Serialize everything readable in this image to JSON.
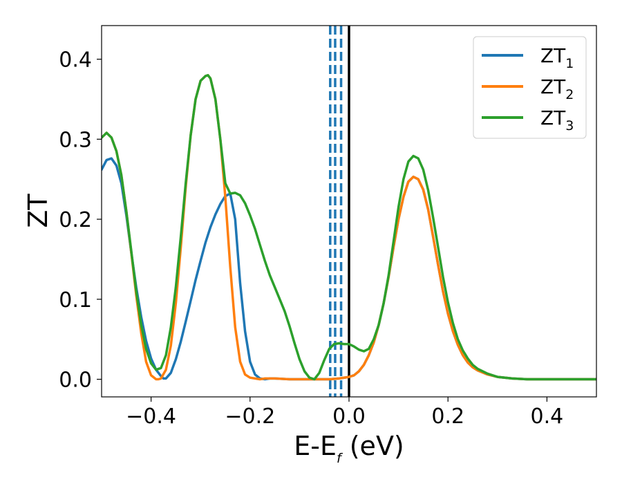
{
  "chart_data": {
    "type": "line",
    "xlabel": {
      "main": "E-E",
      "sub": "f",
      "suffix": " (eV)"
    },
    "ylabel": "ZT",
    "xlim": [
      -0.5,
      0.5
    ],
    "ylim": [
      -0.022,
      0.442
    ],
    "xticks": [
      -0.4,
      -0.2,
      0.0,
      0.2,
      0.4
    ],
    "xtick_labels": [
      "−0.4",
      "−0.2",
      "0.0",
      "0.2",
      "0.4"
    ],
    "yticks": [
      0.0,
      0.1,
      0.2,
      0.3,
      0.4
    ],
    "ytick_labels": [
      "0.0",
      "0.1",
      "0.2",
      "0.3",
      "0.4"
    ],
    "grid": false,
    "legend_position": "top-right",
    "series": [
      {
        "name": "ZT",
        "name_sub": "1",
        "color": "#1f77b4",
        "x": [
          -0.5,
          -0.49,
          -0.48,
          -0.47,
          -0.46,
          -0.45,
          -0.44,
          -0.43,
          -0.42,
          -0.41,
          -0.4,
          -0.39,
          -0.38,
          -0.375,
          -0.37,
          -0.36,
          -0.35,
          -0.34,
          -0.33,
          -0.32,
          -0.31,
          -0.3,
          -0.29,
          -0.28,
          -0.27,
          -0.26,
          -0.25,
          -0.24,
          -0.23,
          -0.22,
          -0.21,
          -0.2,
          -0.19,
          -0.18,
          -0.17,
          -0.16,
          -0.15,
          -0.12,
          -0.1,
          -0.08,
          -0.06,
          -0.04,
          -0.02,
          0.0,
          0.01,
          0.02,
          0.03,
          0.04,
          0.05,
          0.06,
          0.07,
          0.08,
          0.09,
          0.1,
          0.11,
          0.12,
          0.13,
          0.14,
          0.15,
          0.16,
          0.17,
          0.18,
          0.19,
          0.2,
          0.21,
          0.22,
          0.23,
          0.24,
          0.25,
          0.26,
          0.28,
          0.3,
          0.33,
          0.36,
          0.4,
          0.45,
          0.5
        ],
        "y": [
          0.262,
          0.274,
          0.276,
          0.267,
          0.245,
          0.205,
          0.158,
          0.115,
          0.078,
          0.048,
          0.026,
          0.012,
          0.004,
          0.001,
          0.001,
          0.008,
          0.025,
          0.047,
          0.072,
          0.098,
          0.124,
          0.148,
          0.171,
          0.19,
          0.206,
          0.219,
          0.229,
          0.232,
          0.2,
          0.12,
          0.06,
          0.022,
          0.006,
          0.001,
          0.0,
          0.001,
          0.001,
          0.0,
          0.0,
          0.0,
          0.0,
          0.0,
          0.001,
          0.003,
          0.005,
          0.01,
          0.018,
          0.03,
          0.046,
          0.068,
          0.095,
          0.128,
          0.165,
          0.2,
          0.228,
          0.247,
          0.253,
          0.25,
          0.237,
          0.212,
          0.178,
          0.143,
          0.11,
          0.082,
          0.06,
          0.043,
          0.03,
          0.021,
          0.015,
          0.011,
          0.006,
          0.003,
          0.001,
          0.0,
          0.0,
          0.0,
          0.0
        ]
      },
      {
        "name": "ZT",
        "name_sub": "2",
        "color": "#ff7f0e",
        "x": [
          -0.5,
          -0.49,
          -0.48,
          -0.47,
          -0.46,
          -0.45,
          -0.44,
          -0.43,
          -0.42,
          -0.41,
          -0.4,
          -0.39,
          -0.385,
          -0.38,
          -0.37,
          -0.36,
          -0.35,
          -0.34,
          -0.33,
          -0.32,
          -0.31,
          -0.3,
          -0.29,
          -0.285,
          -0.28,
          -0.27,
          -0.26,
          -0.25,
          -0.24,
          -0.23,
          -0.22,
          -0.21,
          -0.2,
          -0.19,
          -0.18,
          -0.17,
          -0.16,
          -0.15,
          -0.12,
          -0.1,
          -0.08,
          -0.06,
          -0.04,
          -0.02,
          0.0,
          0.01,
          0.02,
          0.03,
          0.04,
          0.05,
          0.06,
          0.07,
          0.08,
          0.09,
          0.1,
          0.11,
          0.12,
          0.13,
          0.14,
          0.15,
          0.16,
          0.17,
          0.18,
          0.19,
          0.2,
          0.21,
          0.22,
          0.23,
          0.24,
          0.25,
          0.26,
          0.28,
          0.3,
          0.33,
          0.36,
          0.4,
          0.45,
          0.5
        ],
        "y": [
          0.302,
          0.308,
          0.302,
          0.285,
          0.255,
          0.21,
          0.158,
          0.105,
          0.058,
          0.022,
          0.005,
          0.0,
          0.0,
          0.001,
          0.012,
          0.042,
          0.095,
          0.165,
          0.24,
          0.305,
          0.35,
          0.373,
          0.379,
          0.38,
          0.376,
          0.35,
          0.3,
          0.228,
          0.14,
          0.065,
          0.022,
          0.006,
          0.002,
          0.001,
          0.0,
          0.001,
          0.001,
          0.001,
          0.0,
          0.0,
          0.0,
          0.0,
          0.0,
          0.001,
          0.003,
          0.005,
          0.01,
          0.018,
          0.03,
          0.046,
          0.068,
          0.095,
          0.128,
          0.165,
          0.2,
          0.228,
          0.247,
          0.253,
          0.25,
          0.237,
          0.212,
          0.178,
          0.143,
          0.11,
          0.082,
          0.06,
          0.043,
          0.03,
          0.021,
          0.015,
          0.011,
          0.006,
          0.003,
          0.001,
          0.0,
          0.0,
          0.0,
          0.0
        ]
      },
      {
        "name": "ZT",
        "name_sub": "3",
        "color": "#2ca02c",
        "x": [
          -0.5,
          -0.49,
          -0.48,
          -0.47,
          -0.46,
          -0.45,
          -0.44,
          -0.43,
          -0.42,
          -0.41,
          -0.4,
          -0.39,
          -0.38,
          -0.37,
          -0.36,
          -0.35,
          -0.34,
          -0.33,
          -0.32,
          -0.31,
          -0.3,
          -0.29,
          -0.285,
          -0.28,
          -0.27,
          -0.26,
          -0.25,
          -0.24,
          -0.23,
          -0.22,
          -0.21,
          -0.2,
          -0.19,
          -0.18,
          -0.17,
          -0.16,
          -0.15,
          -0.14,
          -0.13,
          -0.12,
          -0.11,
          -0.1,
          -0.09,
          -0.08,
          -0.07,
          -0.06,
          -0.05,
          -0.04,
          -0.03,
          -0.02,
          -0.01,
          0.0,
          0.01,
          0.02,
          0.03,
          0.04,
          0.05,
          0.06,
          0.07,
          0.08,
          0.09,
          0.1,
          0.11,
          0.12,
          0.13,
          0.14,
          0.15,
          0.16,
          0.17,
          0.18,
          0.19,
          0.2,
          0.21,
          0.22,
          0.23,
          0.24,
          0.25,
          0.26,
          0.28,
          0.3,
          0.33,
          0.36,
          0.4,
          0.45,
          0.5
        ],
        "y": [
          0.302,
          0.308,
          0.302,
          0.285,
          0.255,
          0.21,
          0.16,
          0.11,
          0.068,
          0.038,
          0.02,
          0.012,
          0.014,
          0.03,
          0.065,
          0.115,
          0.178,
          0.245,
          0.305,
          0.35,
          0.373,
          0.379,
          0.38,
          0.376,
          0.35,
          0.3,
          0.245,
          0.232,
          0.233,
          0.23,
          0.22,
          0.205,
          0.188,
          0.168,
          0.148,
          0.13,
          0.115,
          0.1,
          0.085,
          0.066,
          0.045,
          0.025,
          0.01,
          0.002,
          0.0,
          0.008,
          0.024,
          0.038,
          0.044,
          0.045,
          0.044,
          0.044,
          0.041,
          0.037,
          0.035,
          0.038,
          0.05,
          0.068,
          0.095,
          0.13,
          0.172,
          0.215,
          0.25,
          0.272,
          0.279,
          0.276,
          0.262,
          0.236,
          0.202,
          0.165,
          0.128,
          0.096,
          0.07,
          0.05,
          0.036,
          0.026,
          0.018,
          0.013,
          0.007,
          0.003,
          0.001,
          0.0,
          0.0,
          0.0,
          0.0
        ]
      }
    ],
    "vertical_lines": [
      {
        "x": -0.038,
        "color": "#1f77b4",
        "style": "dashed"
      },
      {
        "x": -0.028,
        "color": "#1f77b4",
        "style": "dashed"
      },
      {
        "x": -0.016,
        "color": "#1f77b4",
        "style": "dashed"
      },
      {
        "x": 0.0,
        "color": "#000000",
        "style": "solid"
      }
    ]
  }
}
